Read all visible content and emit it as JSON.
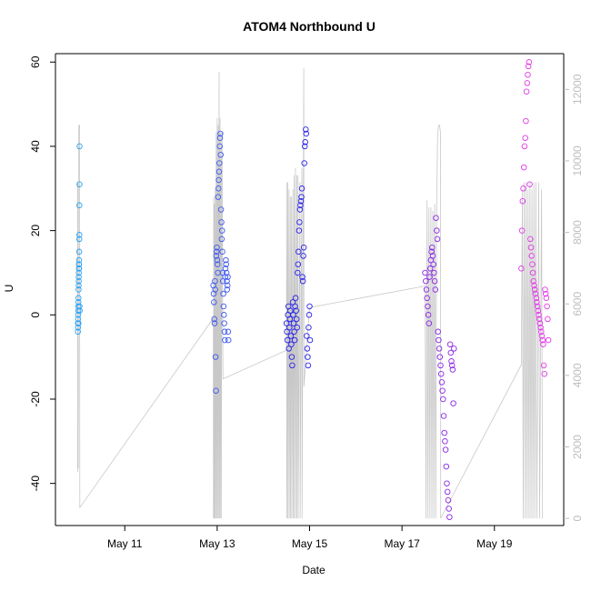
{
  "chart_data": {
    "type": "scatter",
    "title": "ATOM4 Northbound U",
    "xlabel": "Date",
    "ylabel": "U",
    "y2label": "",
    "xlim": [
      "2016-05-09T12:00",
      "2016-05-20T12:00"
    ],
    "ylim": [
      -50,
      62
    ],
    "y2lim": [
      -200,
      13000
    ],
    "x_ticks": [
      {
        "date": "2016-05-11",
        "label": "May 11"
      },
      {
        "date": "2016-05-13",
        "label": "May 13"
      },
      {
        "date": "2016-05-15",
        "label": "May 15"
      },
      {
        "date": "2016-05-17",
        "label": "May 17"
      },
      {
        "date": "2016-05-19",
        "label": "May 19"
      }
    ],
    "y_ticks": [
      -40,
      -20,
      0,
      20,
      40,
      60
    ],
    "y2_ticks": [
      0,
      2000,
      4000,
      6000,
      8000,
      10000,
      12000
    ],
    "grid": false,
    "legend": "none",
    "point_style": "open-circle",
    "point_color_scale": [
      "#1aa3ff",
      "#1a1aff",
      "#8a1aff",
      "#ff1aff"
    ],
    "secondary_line_color": "#c8c8c8",
    "series": [
      {
        "color": "#29a3f5",
        "x": [
          "2016-05-09T23:40",
          "2016-05-09T23:42",
          "2016-05-09T23:44",
          "2016-05-09T23:46",
          "2016-05-09T23:48",
          "2016-05-09T23:50",
          "2016-05-09T23:52",
          "2016-05-09T23:54",
          "2016-05-09T23:56",
          "2016-05-09T23:58",
          "2016-05-10T00:00",
          "2016-05-10T00:02",
          "2016-05-10T00:04",
          "2016-05-10T00:06",
          "2016-05-10T00:08",
          "2016-05-10T00:10",
          "2016-05-10T00:12",
          "2016-05-10T00:14",
          "2016-05-10T00:16",
          "2016-05-10T00:18",
          "2016-05-10T00:20",
          "2016-05-10T00:22",
          "2016-05-10T00:24",
          "2016-05-10T00:26",
          "2016-05-10T00:28",
          "2016-05-10T00:30",
          "2016-05-10T00:32",
          "2016-05-10T00:34"
        ],
        "y": [
          -4,
          -3,
          -2,
          -1,
          0,
          1,
          2,
          3,
          -2,
          4,
          6,
          7,
          8,
          9,
          10,
          11,
          12,
          12,
          13,
          11,
          15,
          18,
          19,
          26,
          31,
          40,
          2,
          1
        ]
      },
      {
        "color": "#3f59f0",
        "x": [
          "2016-05-12T22:00",
          "2016-05-12T22:10",
          "2016-05-12T22:20",
          "2016-05-12T22:30",
          "2016-05-12T22:40",
          "2016-05-12T22:50",
          "2016-05-12T23:00",
          "2016-05-12T23:10",
          "2016-05-12T23:20",
          "2016-05-12T23:30",
          "2016-05-12T23:40",
          "2016-05-12T23:50",
          "2016-05-13T00:00",
          "2016-05-13T00:10",
          "2016-05-13T00:20",
          "2016-05-13T00:30",
          "2016-05-13T00:40",
          "2016-05-13T00:50",
          "2016-05-13T01:00",
          "2016-05-13T01:10",
          "2016-05-13T01:20",
          "2016-05-13T01:30",
          "2016-05-13T01:40",
          "2016-05-13T01:50",
          "2016-05-13T02:00",
          "2016-05-13T02:10",
          "2016-05-13T02:20",
          "2016-05-13T02:30",
          "2016-05-13T02:40",
          "2016-05-13T02:50",
          "2016-05-13T03:00",
          "2016-05-13T03:10",
          "2016-05-13T03:20",
          "2016-05-13T03:30",
          "2016-05-13T03:40",
          "2016-05-13T03:50",
          "2016-05-13T04:00",
          "2016-05-13T04:10",
          "2016-05-13T04:20",
          "2016-05-13T04:30",
          "2016-05-13T04:40",
          "2016-05-13T04:50",
          "2016-05-13T05:00",
          "2016-05-13T05:10",
          "2016-05-13T05:20",
          "2016-05-13T05:30",
          "2016-05-13T05:40",
          "2016-05-13T05:50"
        ],
        "y": [
          7,
          5,
          3,
          -1,
          -2,
          8,
          6,
          -10,
          -18,
          14,
          15,
          16,
          13,
          12,
          10,
          28,
          30,
          32,
          34,
          36,
          40,
          42,
          43,
          38,
          25,
          22,
          18,
          20,
          15,
          10,
          8,
          5,
          2,
          0,
          -2,
          -4,
          -6,
          9,
          11,
          13,
          12,
          10,
          8,
          6,
          7,
          9,
          -4,
          -6
        ]
      },
      {
        "color": "#2a22e8",
        "x": [
          "2016-05-14T12:00",
          "2016-05-14T12:15",
          "2016-05-14T12:30",
          "2016-05-14T12:45",
          "2016-05-14T13:00",
          "2016-05-14T13:15",
          "2016-05-14T13:30",
          "2016-05-14T13:45",
          "2016-05-14T14:00",
          "2016-05-14T14:15",
          "2016-05-14T14:30",
          "2016-05-14T14:45",
          "2016-05-14T15:00",
          "2016-05-14T15:15",
          "2016-05-14T15:30",
          "2016-05-14T15:45",
          "2016-05-14T16:00",
          "2016-05-14T16:15",
          "2016-05-14T16:30",
          "2016-05-14T16:45",
          "2016-05-14T17:00",
          "2016-05-14T17:15",
          "2016-05-14T17:30",
          "2016-05-14T17:45",
          "2016-05-14T18:00",
          "2016-05-14T18:15",
          "2016-05-14T18:30",
          "2016-05-14T18:45",
          "2016-05-14T19:00",
          "2016-05-14T19:15",
          "2016-05-14T19:30",
          "2016-05-14T19:45",
          "2016-05-14T20:00",
          "2016-05-14T20:15",
          "2016-05-14T20:30",
          "2016-05-14T20:45",
          "2016-05-14T21:00",
          "2016-05-14T21:15",
          "2016-05-14T21:30",
          "2016-05-14T21:45",
          "2016-05-14T22:00",
          "2016-05-14T22:15",
          "2016-05-14T22:30",
          "2016-05-14T22:45",
          "2016-05-14T23:00",
          "2016-05-14T23:15",
          "2016-05-14T23:30",
          "2016-05-14T23:45",
          "2016-05-15T00:00",
          "2016-05-15T00:15"
        ],
        "y": [
          -2,
          -4,
          -6,
          0,
          2,
          -8,
          -3,
          -1,
          1,
          -5,
          -7,
          -10,
          -12,
          3,
          0,
          -2,
          -4,
          -6,
          2,
          4,
          1,
          -1,
          -3,
          10,
          12,
          15,
          20,
          22,
          25,
          26,
          27,
          28,
          30,
          9,
          8,
          14,
          16,
          36,
          40,
          41,
          44,
          43,
          -5,
          -8,
          -10,
          -12,
          -3,
          0,
          2,
          -6
        ]
      },
      {
        "color": "#8a28e6",
        "x": [
          "2016-05-17T12:00",
          "2016-05-17T12:20",
          "2016-05-17T12:40",
          "2016-05-17T13:00",
          "2016-05-17T13:20",
          "2016-05-17T13:40",
          "2016-05-17T14:00",
          "2016-05-17T14:20",
          "2016-05-17T14:40",
          "2016-05-17T15:00",
          "2016-05-17T15:20",
          "2016-05-17T15:40",
          "2016-05-17T16:00",
          "2016-05-17T16:20",
          "2016-05-17T16:40",
          "2016-05-17T17:00",
          "2016-05-17T17:20",
          "2016-05-17T17:40",
          "2016-05-17T18:00",
          "2016-05-17T18:20",
          "2016-05-17T18:40",
          "2016-05-17T19:00",
          "2016-05-17T19:20",
          "2016-05-17T19:40",
          "2016-05-17T20:00",
          "2016-05-17T20:20",
          "2016-05-17T20:40",
          "2016-05-17T21:00",
          "2016-05-17T21:20",
          "2016-05-17T21:40",
          "2016-05-17T22:00",
          "2016-05-17T22:20",
          "2016-05-17T22:40",
          "2016-05-17T23:00",
          "2016-05-17T23:20",
          "2016-05-17T23:40",
          "2016-05-18T00:00",
          "2016-05-18T00:20",
          "2016-05-18T00:40",
          "2016-05-18T01:00",
          "2016-05-18T01:20",
          "2016-05-18T01:40",
          "2016-05-18T02:00",
          "2016-05-18T02:20",
          "2016-05-18T02:40",
          "2016-05-18T03:00"
        ],
        "y": [
          10,
          8,
          6,
          4,
          2,
          0,
          -2,
          9,
          11,
          13,
          15,
          16,
          14,
          12,
          10,
          8,
          6,
          23,
          20,
          18,
          -4,
          -6,
          -8,
          -10,
          -12,
          -14,
          -16,
          -18,
          -20,
          -24,
          -28,
          -30,
          -32,
          -36,
          -40,
          -42,
          -44,
          -46,
          -48,
          -7,
          -9,
          -11,
          -12,
          -13,
          -21,
          -8
        ]
      },
      {
        "color": "#e23ae8",
        "x": [
          "2016-05-19T14:00",
          "2016-05-19T14:20",
          "2016-05-19T14:40",
          "2016-05-19T15:00",
          "2016-05-19T15:20",
          "2016-05-19T15:40",
          "2016-05-19T16:00",
          "2016-05-19T16:20",
          "2016-05-19T16:40",
          "2016-05-19T17:00",
          "2016-05-19T17:20",
          "2016-05-19T17:40",
          "2016-05-19T18:00",
          "2016-05-19T18:20",
          "2016-05-19T18:40",
          "2016-05-19T19:00",
          "2016-05-19T19:20",
          "2016-05-19T19:40",
          "2016-05-19T20:00",
          "2016-05-19T20:20",
          "2016-05-19T20:40",
          "2016-05-19T21:00",
          "2016-05-19T21:20",
          "2016-05-19T21:40",
          "2016-05-19T22:00",
          "2016-05-19T22:20",
          "2016-05-19T22:40",
          "2016-05-19T23:00",
          "2016-05-19T23:20",
          "2016-05-19T23:40",
          "2016-05-20T00:00",
          "2016-05-20T00:20",
          "2016-05-20T00:40",
          "2016-05-20T01:00",
          "2016-05-20T01:20",
          "2016-05-20T01:40",
          "2016-05-20T02:00",
          "2016-05-20T02:20",
          "2016-05-20T02:40",
          "2016-05-20T03:00",
          "2016-05-20T03:20",
          "2016-05-20T03:40",
          "2016-05-20T04:00"
        ],
        "y": [
          11,
          20,
          27,
          30,
          35,
          40,
          42,
          46,
          53,
          55,
          57,
          59,
          60,
          31,
          18,
          16,
          14,
          12,
          10,
          8,
          7,
          6,
          5,
          4,
          3,
          2,
          1,
          0,
          -1,
          -2,
          -3,
          -4,
          -5,
          -6,
          -7,
          -12,
          -14,
          6,
          5,
          4,
          2,
          -1,
          -6
        ]
      }
    ],
    "secondary_series": {
      "color": "#c8c8c8",
      "points": [
        [
          "2016-05-09T23:30",
          2600
        ],
        [
          "2016-05-09T23:31",
          9400
        ],
        [
          "2016-05-09T23:32",
          1300
        ],
        [
          "2016-05-09T23:33",
          9400
        ],
        [
          "2016-05-09T23:34",
          9400
        ],
        [
          "2016-05-09T23:35",
          2600
        ],
        [
          "2016-05-09T23:36",
          9400
        ],
        [
          "2016-05-09T23:40",
          9000
        ],
        [
          "2016-05-09T23:50",
          1400
        ],
        [
          "2016-05-09T23:55",
          9400
        ],
        [
          "2016-05-10T00:00",
          9600
        ],
        [
          "2016-05-10T00:05",
          10800
        ],
        [
          "2016-05-10T00:10",
          11000
        ],
        [
          "2016-05-10T00:15",
          11000
        ],
        [
          "2016-05-10T00:20",
          11000
        ],
        [
          "2016-05-10T00:30",
          11000
        ],
        [
          "2016-05-10T00:40",
          300
        ],
        [
          "2016-05-12T22:00",
          5600
        ],
        [
          "2016-05-12T22:05",
          0
        ],
        [
          "2016-05-12T22:10",
          9000
        ],
        [
          "2016-05-12T22:15",
          0
        ],
        [
          "2016-05-12T22:30",
          8800
        ],
        [
          "2016-05-12T22:35",
          0
        ],
        [
          "2016-05-12T23:00",
          9200
        ],
        [
          "2016-05-12T23:05",
          0
        ],
        [
          "2016-05-12T23:30",
          10800
        ],
        [
          "2016-05-12T23:35",
          0
        ],
        [
          "2016-05-13T00:00",
          11200
        ],
        [
          "2016-05-13T00:05",
          0
        ],
        [
          "2016-05-13T00:30",
          11000
        ],
        [
          "2016-05-13T00:35",
          0
        ],
        [
          "2016-05-13T01:00",
          12500
        ],
        [
          "2016-05-13T01:05",
          0
        ],
        [
          "2016-05-13T01:30",
          11200
        ],
        [
          "2016-05-13T01:35",
          0
        ],
        [
          "2016-05-13T02:00",
          10800
        ],
        [
          "2016-05-13T02:05",
          0
        ],
        [
          "2016-05-13T02:30",
          10800
        ],
        [
          "2016-05-13T03:00",
          3900
        ],
        [
          "2016-05-14T12:00",
          4700
        ],
        [
          "2016-05-14T12:05",
          9400
        ],
        [
          "2016-05-14T12:10",
          0
        ],
        [
          "2016-05-14T12:40",
          9400
        ],
        [
          "2016-05-14T12:45",
          0
        ],
        [
          "2016-05-14T13:20",
          9200
        ],
        [
          "2016-05-14T13:25",
          0
        ],
        [
          "2016-05-14T14:00",
          9000
        ],
        [
          "2016-05-14T14:05",
          0
        ],
        [
          "2016-05-14T14:40",
          9000
        ],
        [
          "2016-05-14T14:45",
          0
        ],
        [
          "2016-05-14T15:20",
          9200
        ],
        [
          "2016-05-14T15:25",
          0
        ],
        [
          "2016-05-14T16:00",
          9600
        ],
        [
          "2016-05-14T16:05",
          0
        ],
        [
          "2016-05-14T16:40",
          9800
        ],
        [
          "2016-05-14T16:45",
          0
        ],
        [
          "2016-05-14T17:20",
          9600
        ],
        [
          "2016-05-14T17:25",
          0
        ],
        [
          "2016-05-14T18:00",
          9600
        ],
        [
          "2016-05-14T18:05",
          0
        ],
        [
          "2016-05-14T19:00",
          9400
        ],
        [
          "2016-05-14T19:05",
          0
        ],
        [
          "2016-05-14T20:00",
          9800
        ],
        [
          "2016-05-14T20:05",
          0
        ],
        [
          "2016-05-14T21:00",
          12600
        ],
        [
          "2016-05-14T21:05",
          3700
        ],
        [
          "2016-05-15T00:00",
          5900
        ],
        [
          "2016-05-17T12:00",
          6500
        ],
        [
          "2016-05-17T12:30",
          0
        ],
        [
          "2016-05-17T13:00",
          8900
        ],
        [
          "2016-05-17T13:30",
          0
        ],
        [
          "2016-05-17T14:00",
          8700
        ],
        [
          "2016-05-17T14:30",
          0
        ],
        [
          "2016-05-17T15:00",
          8700
        ],
        [
          "2016-05-17T15:30",
          0
        ],
        [
          "2016-05-17T16:00",
          8600
        ],
        [
          "2016-05-17T16:30",
          0
        ],
        [
          "2016-05-17T17:00",
          8800
        ],
        [
          "2016-05-17T17:30",
          0
        ],
        [
          "2016-05-17T18:00",
          8900
        ],
        [
          "2016-05-17T18:30",
          10700
        ],
        [
          "2016-05-17T19:00",
          11000
        ],
        [
          "2016-05-17T19:30",
          11000
        ],
        [
          "2016-05-17T20:00",
          10800
        ],
        [
          "2016-05-17T20:05",
          0
        ],
        [
          "2016-05-19T14:00",
          4300
        ],
        [
          "2016-05-19T14:30",
          9200
        ],
        [
          "2016-05-19T15:00",
          0
        ],
        [
          "2016-05-19T15:30",
          9400
        ],
        [
          "2016-05-19T16:00",
          0
        ],
        [
          "2016-05-19T16:30",
          9400
        ],
        [
          "2016-05-19T17:00",
          0
        ],
        [
          "2016-05-19T17:30",
          9200
        ],
        [
          "2016-05-19T18:00",
          0
        ],
        [
          "2016-05-19T18:30",
          9400
        ],
        [
          "2016-05-19T19:00",
          0
        ],
        [
          "2016-05-19T19:30",
          9200
        ],
        [
          "2016-05-19T20:00",
          0
        ],
        [
          "2016-05-19T20:30",
          9400
        ],
        [
          "2016-05-19T21:00",
          0
        ],
        [
          "2016-05-19T21:30",
          9400
        ],
        [
          "2016-05-19T22:00",
          0
        ],
        [
          "2016-05-19T23:00",
          9400
        ],
        [
          "2016-05-19T23:30",
          0
        ],
        [
          "2016-05-20T00:30",
          9200
        ],
        [
          "2016-05-20T01:00",
          0
        ]
      ]
    }
  }
}
